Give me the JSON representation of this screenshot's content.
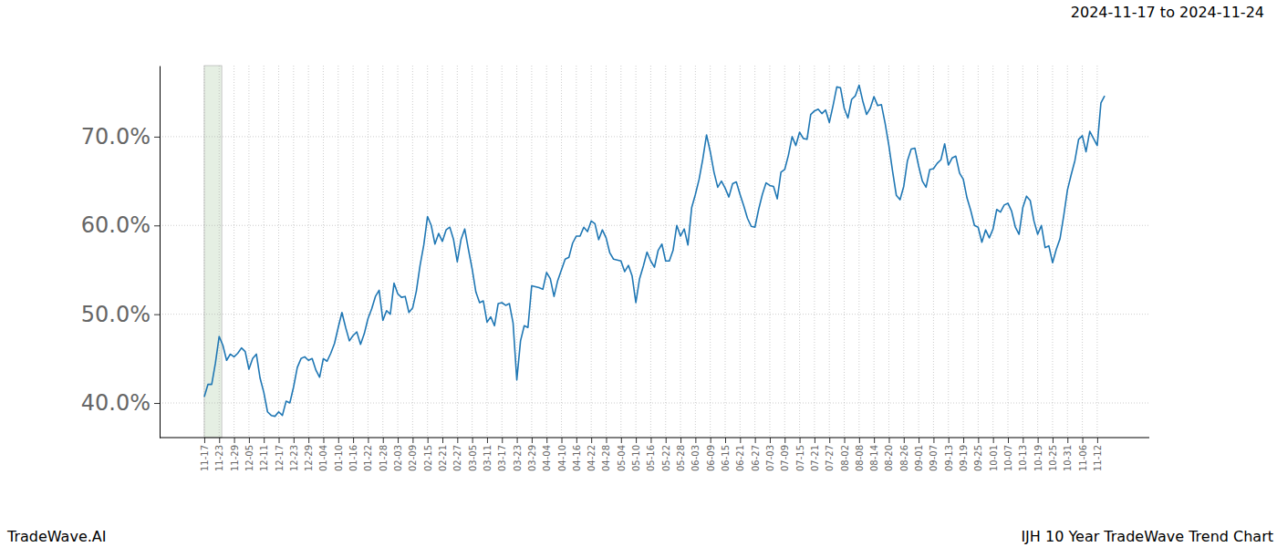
{
  "chart_data": {
    "type": "line",
    "title": "2024-11-17 to 2024-11-24",
    "annotations": [
      "TradeWave.AI",
      "IJH 10 Year TradeWave Trend Chart"
    ],
    "color": "#1f77b4",
    "grid": true,
    "ylim": [
      36.1,
      78.0
    ],
    "yticks": [
      {
        "value": 40,
        "label": "40.0%"
      },
      {
        "value": 50,
        "label": "50.0%"
      },
      {
        "value": 60,
        "label": "60.0%"
      },
      {
        "value": 70,
        "label": "70.0%"
      }
    ],
    "categories": [
      "11-17",
      null,
      null,
      null,
      "11-23",
      null,
      null,
      null,
      "11-29",
      null,
      null,
      null,
      "12-05",
      null,
      null,
      null,
      "12-11",
      null,
      null,
      null,
      "12-17",
      null,
      null,
      null,
      "12-23",
      null,
      null,
      null,
      "12-29",
      null,
      null,
      null,
      "01-04",
      null,
      null,
      null,
      "01-10",
      null,
      null,
      null,
      "01-16",
      null,
      null,
      null,
      "01-22",
      null,
      null,
      null,
      "01-28",
      null,
      null,
      null,
      "02-03",
      null,
      null,
      null,
      "02-09",
      null,
      null,
      null,
      "02-15",
      null,
      null,
      null,
      "02-21",
      null,
      null,
      null,
      "02-27",
      null,
      null,
      null,
      "03-05",
      null,
      null,
      null,
      "03-11",
      null,
      null,
      null,
      "03-17",
      null,
      null,
      null,
      "03-23",
      null,
      null,
      null,
      "03-29",
      null,
      null,
      null,
      "04-04",
      null,
      null,
      null,
      "04-10",
      null,
      null,
      null,
      "04-16",
      null,
      null,
      null,
      "04-22",
      null,
      null,
      null,
      "04-28",
      null,
      null,
      null,
      "05-04",
      null,
      null,
      null,
      "05-10",
      null,
      null,
      null,
      "05-16",
      null,
      null,
      null,
      "05-22",
      null,
      null,
      null,
      "05-28",
      null,
      null,
      null,
      "06-03",
      null,
      null,
      null,
      "06-09",
      null,
      null,
      null,
      "06-15",
      null,
      null,
      null,
      "06-21",
      null,
      null,
      null,
      "06-27",
      null,
      null,
      null,
      "07-03",
      null,
      null,
      null,
      "07-09",
      null,
      null,
      null,
      "07-15",
      null,
      null,
      null,
      "07-21",
      null,
      null,
      null,
      "07-27",
      null,
      null,
      null,
      "08-02",
      null,
      null,
      null,
      "08-08",
      null,
      null,
      null,
      "08-14",
      null,
      null,
      null,
      "08-20",
      null,
      null,
      null,
      "08-26",
      null,
      null,
      null,
      "09-01",
      null,
      null,
      null,
      "09-07",
      null,
      null,
      null,
      "09-13",
      null,
      null,
      null,
      "09-19",
      null,
      null,
      null,
      "09-25",
      null,
      null,
      null,
      "10-01",
      null,
      null,
      null,
      "10-07",
      null,
      null,
      null,
      "10-13",
      null,
      null,
      null,
      "10-19",
      null,
      null,
      null,
      "10-25",
      null,
      null,
      null,
      "10-31",
      null,
      null,
      null,
      "11-06",
      null,
      null,
      null,
      "11-12",
      null,
      null
    ],
    "values": [
      40.7,
      42.1,
      42.1,
      44.5,
      47.5,
      46.5,
      44.8,
      45.5,
      45.2,
      45.6,
      46.2,
      45.8,
      43.8,
      45.0,
      45.5,
      42.8,
      41.2,
      39.0,
      38.6,
      38.5,
      39.0,
      38.6,
      40.2,
      40.0,
      41.8,
      44.0,
      45.0,
      45.2,
      44.8,
      45.0,
      43.7,
      42.9,
      45.0,
      44.7,
      45.6,
      46.7,
      48.5,
      50.2,
      48.5,
      47.0,
      47.6,
      48.0,
      46.6,
      47.8,
      49.5,
      50.6,
      52.0,
      52.7,
      49.3,
      50.4,
      50.0,
      53.5,
      52.3,
      51.9,
      52.0,
      50.2,
      50.7,
      52.6,
      55.5,
      57.8,
      61.0,
      60.0,
      57.9,
      59.1,
      58.2,
      59.5,
      59.8,
      58.4,
      55.9,
      58.4,
      59.6,
      57.3,
      55.1,
      52.5,
      51.3,
      51.5,
      49.1,
      49.7,
      48.7,
      51.2,
      51.3,
      51.0,
      51.2,
      49.0,
      42.6,
      47.0,
      48.7,
      48.5,
      53.2,
      53.1,
      53.0,
      52.8,
      54.7,
      54.0,
      52.0,
      53.8,
      55.0,
      56.2,
      56.4,
      58.0,
      58.8,
      58.8,
      59.8,
      59.3,
      60.5,
      60.2,
      58.4,
      59.5,
      58.6,
      56.9,
      56.2,
      56.1,
      56.0,
      54.8,
      55.5,
      54.3,
      51.3,
      54.0,
      55.4,
      57.0,
      56.0,
      55.3,
      57.2,
      57.9,
      56.0,
      56.0,
      57.2,
      60.0,
      58.8,
      59.6,
      57.8,
      62.0,
      63.5,
      65.2,
      67.5,
      70.2,
      68.3,
      66.0,
      64.3,
      65.0,
      64.2,
      63.2,
      64.7,
      64.9,
      63.5,
      62.2,
      60.8,
      59.9,
      59.8,
      61.8,
      63.5,
      64.8,
      64.5,
      64.4,
      63.0,
      66.0,
      66.3,
      67.9,
      70.0,
      69.0,
      70.5,
      69.8,
      69.7,
      72.5,
      72.9,
      73.1,
      72.6,
      73.0,
      71.6,
      73.5,
      75.6,
      75.5,
      73.2,
      72.1,
      74.2,
      74.6,
      75.8,
      74.0,
      72.5,
      73.2,
      74.5,
      73.5,
      73.6,
      71.5,
      69.0,
      66.1,
      63.4,
      62.9,
      64.4,
      67.3,
      68.6,
      68.7,
      66.7,
      65.0,
      64.3,
      66.3,
      66.4,
      67.0,
      67.4,
      69.2,
      66.8,
      67.6,
      67.8,
      65.9,
      65.2,
      63.1,
      61.7,
      60.0,
      59.8,
      58.1,
      59.5,
      58.6,
      59.6,
      61.8,
      61.5,
      62.3,
      62.5,
      61.6,
      59.8,
      59.0,
      62.0,
      63.3,
      62.8,
      60.5,
      59.0,
      60.0,
      57.5,
      57.7,
      55.8,
      57.3,
      58.5,
      61.1,
      64.0,
      65.7,
      67.3,
      69.7,
      70.1,
      68.3,
      70.6,
      69.8,
      69.0,
      73.8,
      74.6
    ]
  }
}
